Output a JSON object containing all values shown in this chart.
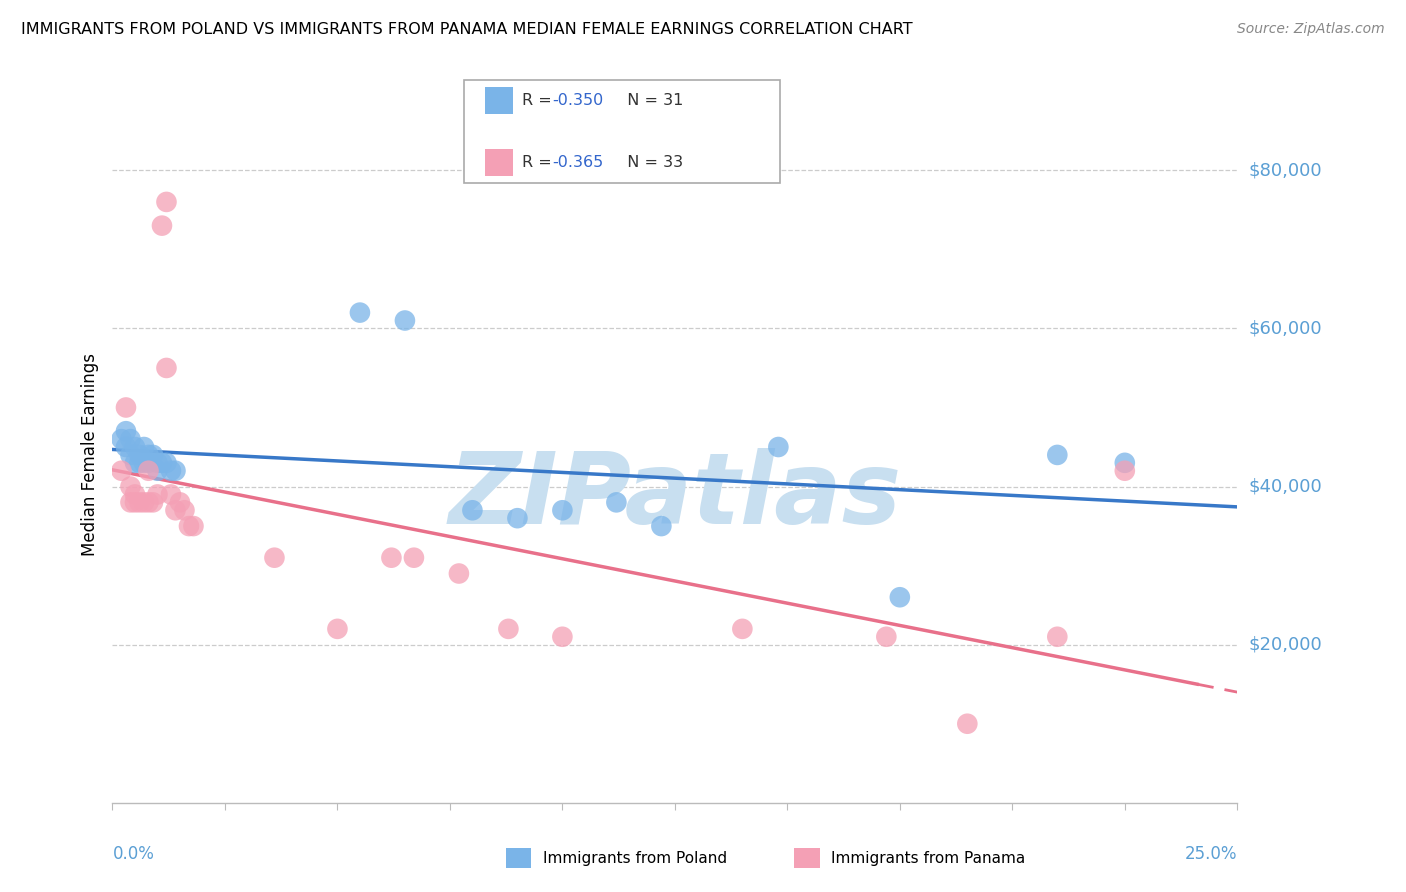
{
  "title": "IMMIGRANTS FROM POLAND VS IMMIGRANTS FROM PANAMA MEDIAN FEMALE EARNINGS CORRELATION CHART",
  "source": "Source: ZipAtlas.com",
  "ylabel": "Median Female Earnings",
  "xmin": 0.0,
  "xmax": 0.25,
  "ymin": 0,
  "ymax": 88000,
  "yticks": [
    20000,
    40000,
    60000,
    80000
  ],
  "ytick_labels": [
    "$20,000",
    "$40,000",
    "$60,000",
    "$80,000"
  ],
  "color_poland": "#7ab4e8",
  "color_panama": "#f4a0b5",
  "color_poland_line": "#3878c8",
  "color_panama_line": "#e8708a",
  "color_axis": "#5b9fd4",
  "label_poland": "Immigrants from Poland",
  "label_panama": "Immigrants from Panama",
  "legend_r1": "-0.350",
  "legend_n1": "31",
  "legend_r2": "-0.365",
  "legend_n2": "33",
  "poland_x": [
    0.002,
    0.003,
    0.003,
    0.004,
    0.004,
    0.005,
    0.005,
    0.006,
    0.006,
    0.007,
    0.007,
    0.008,
    0.008,
    0.009,
    0.01,
    0.01,
    0.011,
    0.012,
    0.013,
    0.014,
    0.055,
    0.065,
    0.08,
    0.09,
    0.1,
    0.112,
    0.122,
    0.148,
    0.175,
    0.21,
    0.225
  ],
  "poland_y": [
    46000,
    47000,
    45000,
    46000,
    44000,
    45000,
    43000,
    44000,
    43000,
    45000,
    43000,
    44000,
    43000,
    44000,
    43000,
    42000,
    43000,
    43000,
    42000,
    42000,
    62000,
    61000,
    37000,
    36000,
    37000,
    38000,
    35000,
    45000,
    26000,
    44000,
    43000
  ],
  "panama_x": [
    0.002,
    0.003,
    0.004,
    0.004,
    0.005,
    0.005,
    0.006,
    0.007,
    0.008,
    0.008,
    0.009,
    0.01,
    0.011,
    0.012,
    0.012,
    0.013,
    0.014,
    0.015,
    0.016,
    0.017,
    0.018,
    0.036,
    0.05,
    0.062,
    0.067,
    0.077,
    0.088,
    0.1,
    0.14,
    0.172,
    0.19,
    0.21,
    0.225
  ],
  "panama_y": [
    42000,
    50000,
    40000,
    38000,
    39000,
    38000,
    38000,
    38000,
    42000,
    38000,
    38000,
    39000,
    73000,
    76000,
    55000,
    39000,
    37000,
    38000,
    37000,
    35000,
    35000,
    31000,
    22000,
    31000,
    31000,
    29000,
    22000,
    21000,
    22000,
    21000,
    10000,
    21000,
    42000
  ],
  "watermark_text": "ZIPatlas",
  "watermark_color": "#c8dff0",
  "grid_color": "#cccccc"
}
